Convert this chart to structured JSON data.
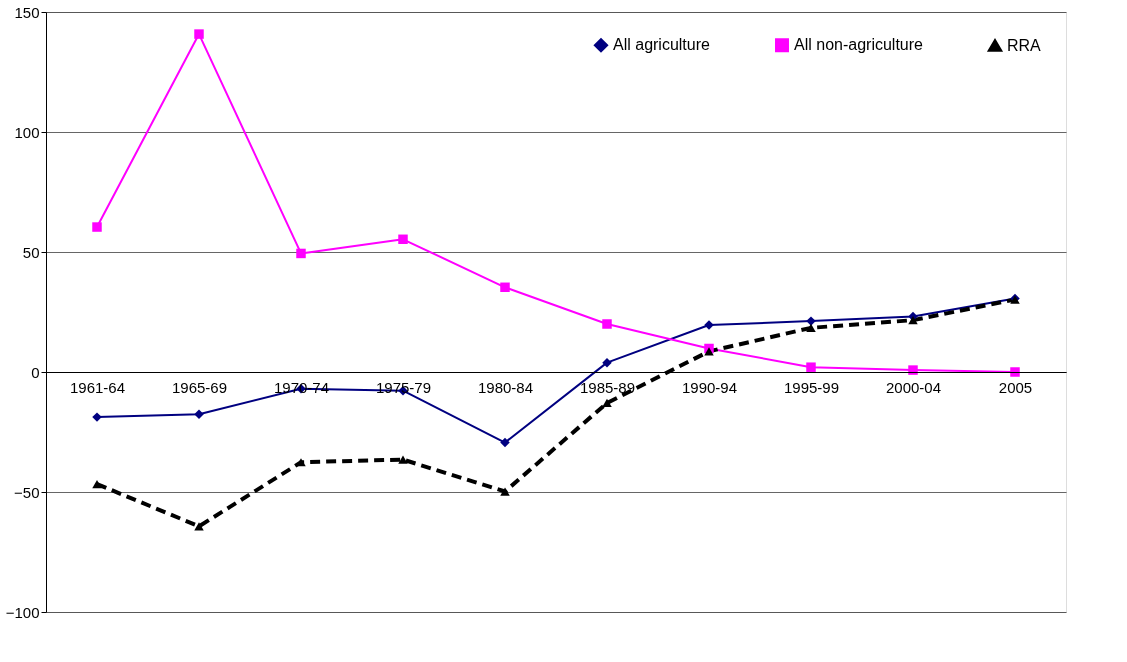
{
  "chart_data": {
    "type": "line",
    "categories": [
      "1961-64",
      "1965-69",
      "1970-74",
      "1975-79",
      "1980-84",
      "1985-89",
      "1990-94",
      "1995-99",
      "2000-04",
      "2005"
    ],
    "series": [
      {
        "name": "All agriculture",
        "color": "#000080",
        "marker": "diamond",
        "line_style": "solid",
        "values": [
          -18.8,
          -17.6,
          -7,
          -7.8,
          -29.4,
          3.9,
          19.6,
          21.2,
          23.1,
          30.6
        ]
      },
      {
        "name": "All non-agriculture",
        "color": "#ff00ff",
        "marker": "square",
        "line_style": "solid",
        "values": [
          60.4,
          140.8,
          49.4,
          55.3,
          35.3,
          20,
          9.8,
          2,
          0.8,
          0
        ]
      },
      {
        "name": "RRA",
        "color": "#000000",
        "marker": "triangle",
        "line_style": "dashed",
        "values": [
          -46.7,
          -64.3,
          -37.6,
          -36.5,
          -49.8,
          -12.9,
          8.6,
          18.4,
          21.6,
          30.2
        ]
      }
    ],
    "ylim": [
      -100,
      150
    ],
    "yticks": [
      -100,
      -50,
      0,
      50,
      100,
      150
    ],
    "grid": "y",
    "legend": "top right"
  }
}
